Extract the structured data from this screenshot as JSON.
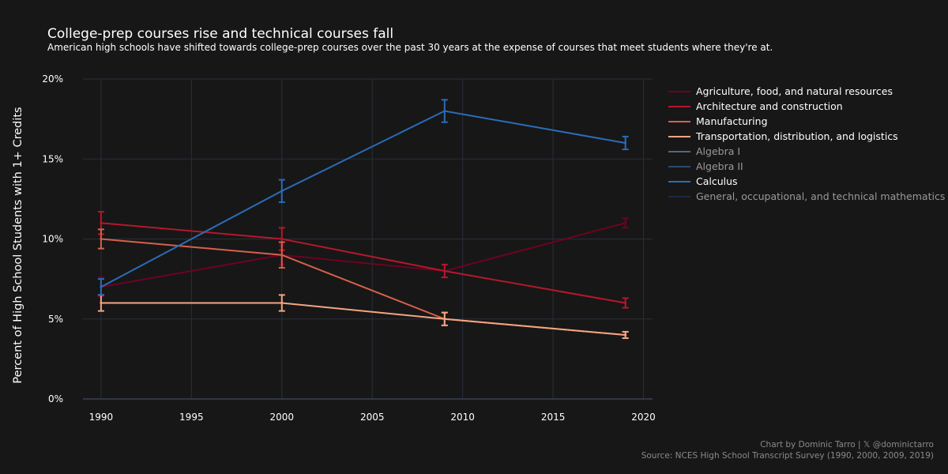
{
  "header": {
    "title": "College-prep courses rise and technical courses fall",
    "subtitle": "American high schools have shifted towards college-prep courses over the past 30 years at the expense of courses that meet students where they're at."
  },
  "footer": {
    "credit": "Chart by Dominic Tarro | 𝕏 @dominictarro",
    "source": "Source: NCES High School Transcript Survey (1990, 2000, 2009, 2019)"
  },
  "chart_data": {
    "type": "line",
    "title": "College-prep courses rise and technical courses fall",
    "ylabel": "Percent of High School Students with 1+ Credits",
    "xlim": [
      1989,
      2020.5
    ],
    "ylim": [
      0,
      20
    ],
    "x_ticks": [
      1990,
      1995,
      2000,
      2005,
      2010,
      2015,
      2020
    ],
    "y_ticks": [
      0,
      5,
      10,
      15,
      20
    ],
    "y_tick_labels": [
      "0%",
      "5%",
      "10%",
      "15%",
      "20%"
    ],
    "grid": true,
    "legend_position": "right",
    "series": [
      {
        "name": "Agriculture, food, and natural resources",
        "color": "#6e0320",
        "visible": true,
        "x": [
          1990,
          2000,
          2009,
          2019
        ],
        "y": [
          7,
          9,
          8,
          11
        ],
        "err": [
          0.6,
          0.6,
          0.4,
          0.3
        ]
      },
      {
        "name": "Architecture and construction",
        "color": "#b5182b",
        "visible": true,
        "x": [
          1990,
          2000,
          2009,
          2019
        ],
        "y": [
          11,
          10,
          8,
          6
        ],
        "err": [
          0.7,
          0.7,
          0.4,
          0.3
        ]
      },
      {
        "name": "Manufacturing",
        "color": "#d6604d",
        "visible": true,
        "x": [
          1990,
          2000,
          2009,
          2019
        ],
        "y": [
          10,
          9,
          5,
          4
        ],
        "err": [
          0.6,
          0.8,
          0.4,
          0.2
        ]
      },
      {
        "name": "Transportation, distribution, and logistics",
        "color": "#f4a582",
        "visible": true,
        "x": [
          1990,
          2000,
          2009,
          2019
        ],
        "y": [
          6,
          6,
          5,
          4
        ],
        "err": [
          0.5,
          0.5,
          0.4,
          0.2
        ]
      },
      {
        "name": "Algebra I",
        "color": "#4f6b82",
        "visible": false,
        "x": [],
        "y": [],
        "err": []
      },
      {
        "name": "Algebra II",
        "color": "#2c4a6b",
        "visible": false,
        "x": [],
        "y": [],
        "err": []
      },
      {
        "name": "Calculus",
        "color": "#2b6cb8",
        "visible": true,
        "x": [
          1990,
          2000,
          2009,
          2019
        ],
        "y": [
          7,
          13,
          18,
          16
        ],
        "err": [
          0.5,
          0.7,
          0.7,
          0.4
        ]
      },
      {
        "name": "General, occupational, and technical mathematics",
        "color": "#1b2a45",
        "visible": false,
        "x": [],
        "y": [],
        "err": []
      }
    ]
  }
}
